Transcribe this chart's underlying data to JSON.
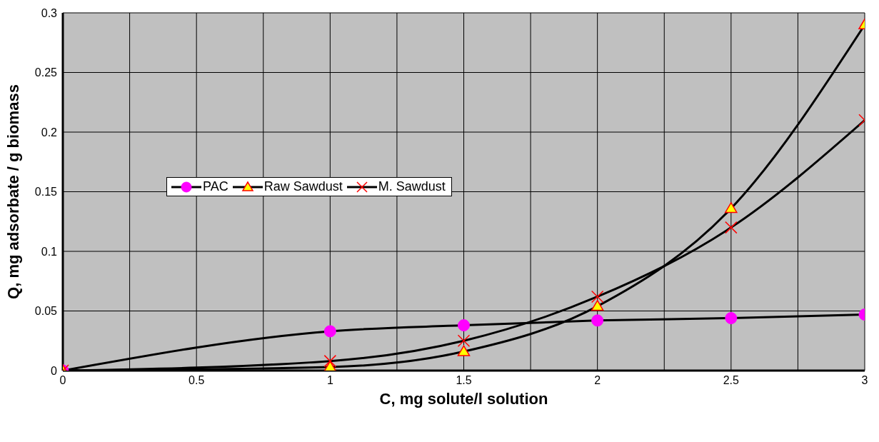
{
  "chart_data": {
    "type": "line",
    "xlabel": "C, mg solute/l solution",
    "ylabel": "Q, mg adsorbate / g biomass",
    "xlim": [
      0,
      3
    ],
    "xticks": [
      0,
      {
        "value": 0.25,
        "label": null
      },
      0.5,
      {
        "value": 0.75,
        "label": null
      },
      1,
      {
        "value": 1.25,
        "label": null
      },
      1.5,
      {
        "value": 1.75,
        "label": null
      },
      2,
      {
        "value": 2.25,
        "label": null
      },
      2.5,
      {
        "value": 2.75,
        "label": null
      },
      3
    ],
    "ylim": [
      0,
      0.3
    ],
    "yticks": [
      0,
      0.05,
      0.1,
      0.15,
      0.2,
      0.25,
      0.3
    ],
    "grid": true,
    "legend": "left",
    "x": [
      0,
      1,
      1.5,
      2,
      2.5,
      3
    ],
    "series": [
      {
        "name": "PAC",
        "color": "#ff00ff",
        "marker": "circle",
        "values": [
          0,
          0.033,
          0.038,
          0.042,
          0.044,
          0.047
        ]
      },
      {
        "name": "Raw Sawdust",
        "color": "#ffff00",
        "marker": "triangle",
        "values": [
          0,
          0.003,
          0.016,
          0.054,
          0.136,
          0.29
        ]
      },
      {
        "name": "M. Sawdust",
        "color": "#ff0000",
        "marker": "cross",
        "values": [
          0,
          0.008,
          0.025,
          0.062,
          0.12,
          0.21
        ]
      }
    ]
  }
}
